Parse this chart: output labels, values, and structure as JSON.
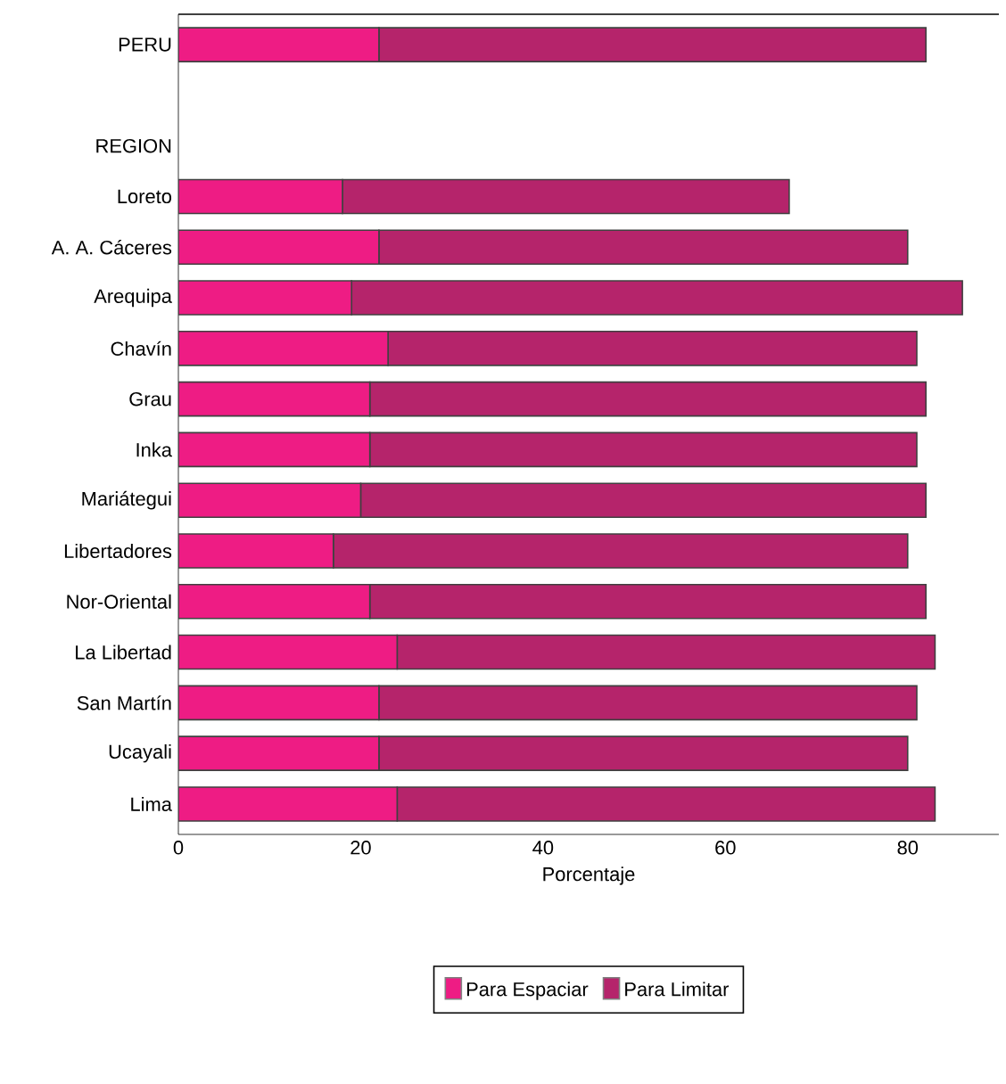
{
  "chart_data": {
    "type": "bar",
    "orientation": "horizontal",
    "stacked": true,
    "xlabel": "Porcentaje",
    "categories": [
      "PERU",
      null,
      "REGION",
      "Loreto",
      "A. A. Cáceres",
      "Arequipa",
      "Chavín",
      "Grau",
      "Inka",
      "Mariátegui",
      "Libertadores",
      "Nor-Oriental",
      "La Libertad",
      "San Martín",
      "Ucayali",
      "Lima"
    ],
    "series": [
      {
        "name": "Para Espaciar",
        "color": "#ee1c84",
        "values": [
          22,
          null,
          null,
          18,
          22,
          19,
          23,
          21,
          21,
          20,
          17,
          21,
          24,
          22,
          22,
          24
        ]
      },
      {
        "name": "Para Limitar",
        "color": "#b5246b",
        "values": [
          60,
          null,
          null,
          49,
          58,
          67,
          58,
          61,
          60,
          62,
          63,
          61,
          59,
          59,
          58,
          59
        ]
      }
    ],
    "xlim": [
      0,
      90
    ],
    "xticks": [
      0,
      20,
      40,
      60,
      80
    ],
    "legend": "bottom"
  }
}
